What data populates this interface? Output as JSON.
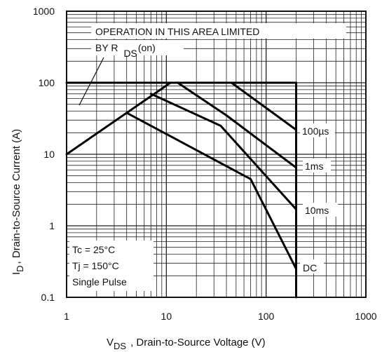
{
  "chart_data": {
    "type": "line",
    "xscale": "log",
    "yscale": "log",
    "xlim": [
      1,
      1000
    ],
    "ylim": [
      0.1,
      1000
    ],
    "grid": true,
    "x_ticks": [
      "1",
      "10",
      "100",
      "1000"
    ],
    "y_ticks": [
      "0.1",
      "1",
      "10",
      "100",
      "1000"
    ],
    "xlabel": {
      "symbol": "V",
      "subscript": "DS",
      "text": ", Drain-to-Source Voltage (V)"
    },
    "ylabel": {
      "symbol": "I",
      "subscript": "D",
      "text": ", Drain-to-Source Current (A)"
    },
    "annotation": {
      "line1": "OPERATION IN THIS AREA LIMITED",
      "line2_prefix": "BY R",
      "line2_subscript": "DS",
      "line2_suffix": "(on)"
    },
    "conditions": [
      "Tc = 25°C",
      "Tj = 150°C",
      "Single Pulse"
    ],
    "series": [
      {
        "name": "RDS(on) limit",
        "x": [
          1,
          11
        ],
        "y": [
          10,
          100
        ]
      },
      {
        "name": "Current limit",
        "x": [
          1,
          200
        ],
        "y": [
          100,
          100
        ]
      },
      {
        "name": "Voltage limit",
        "x": [
          200,
          200
        ],
        "y": [
          0.1,
          100
        ]
      },
      {
        "name": "100µs",
        "x": [
          45,
          200
        ],
        "y": [
          100,
          22
        ]
      },
      {
        "name": "1ms",
        "x": [
          13,
          40,
          200
        ],
        "y": [
          100,
          35,
          6.5
        ]
      },
      {
        "name": "10ms",
        "x": [
          7,
          35,
          200
        ],
        "y": [
          70,
          25,
          1.7
        ]
      },
      {
        "name": "DC",
        "x": [
          4,
          70,
          200
        ],
        "y": [
          38,
          4.5,
          0.25
        ]
      }
    ],
    "series_labels": [
      "100µs",
      "1ms",
      "10ms",
      "DC"
    ]
  }
}
